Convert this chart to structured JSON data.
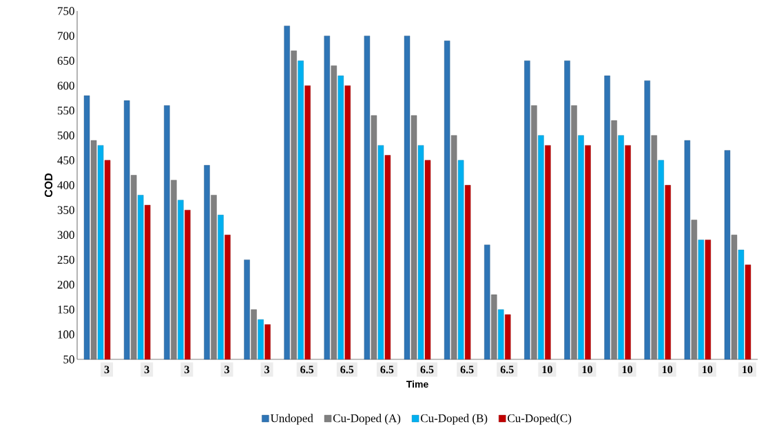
{
  "chart_data": {
    "type": "bar",
    "xlabel": "Time",
    "ylabel": "COD",
    "categories": [
      "3",
      "3",
      "3",
      "3",
      "3",
      "6.5",
      "6.5",
      "6.5",
      "6.5",
      "6.5",
      "6.5",
      "10",
      "10",
      "10",
      "10",
      "10",
      "10"
    ],
    "series": [
      {
        "name": "Undoped",
        "color": "#2e75b6",
        "values": [
          580,
          570,
          560,
          440,
          250,
          720,
          700,
          700,
          700,
          690,
          280,
          650,
          650,
          620,
          610,
          490,
          470
        ]
      },
      {
        "name": "Cu-Doped (A)",
        "color": "#808080",
        "values": [
          490,
          420,
          410,
          380,
          150,
          670,
          640,
          540,
          540,
          500,
          180,
          560,
          560,
          530,
          500,
          330,
          300
        ]
      },
      {
        "name": "Cu-Doped (B)",
        "color": "#00b0f0",
        "values": [
          480,
          380,
          370,
          340,
          130,
          650,
          620,
          480,
          480,
          450,
          150,
          500,
          500,
          500,
          450,
          290,
          270
        ]
      },
      {
        "name": "Cu-Doped(C)",
        "color": "#c00000",
        "values": [
          450,
          360,
          350,
          300,
          120,
          600,
          600,
          460,
          450,
          400,
          140,
          480,
          480,
          480,
          400,
          290,
          240
        ]
      }
    ],
    "ylim": [
      50,
      750
    ],
    "yticks": [
      50,
      100,
      150,
      200,
      250,
      300,
      350,
      400,
      450,
      500,
      550,
      600,
      650,
      700,
      750
    ],
    "grid": false,
    "legend": "bottom"
  }
}
